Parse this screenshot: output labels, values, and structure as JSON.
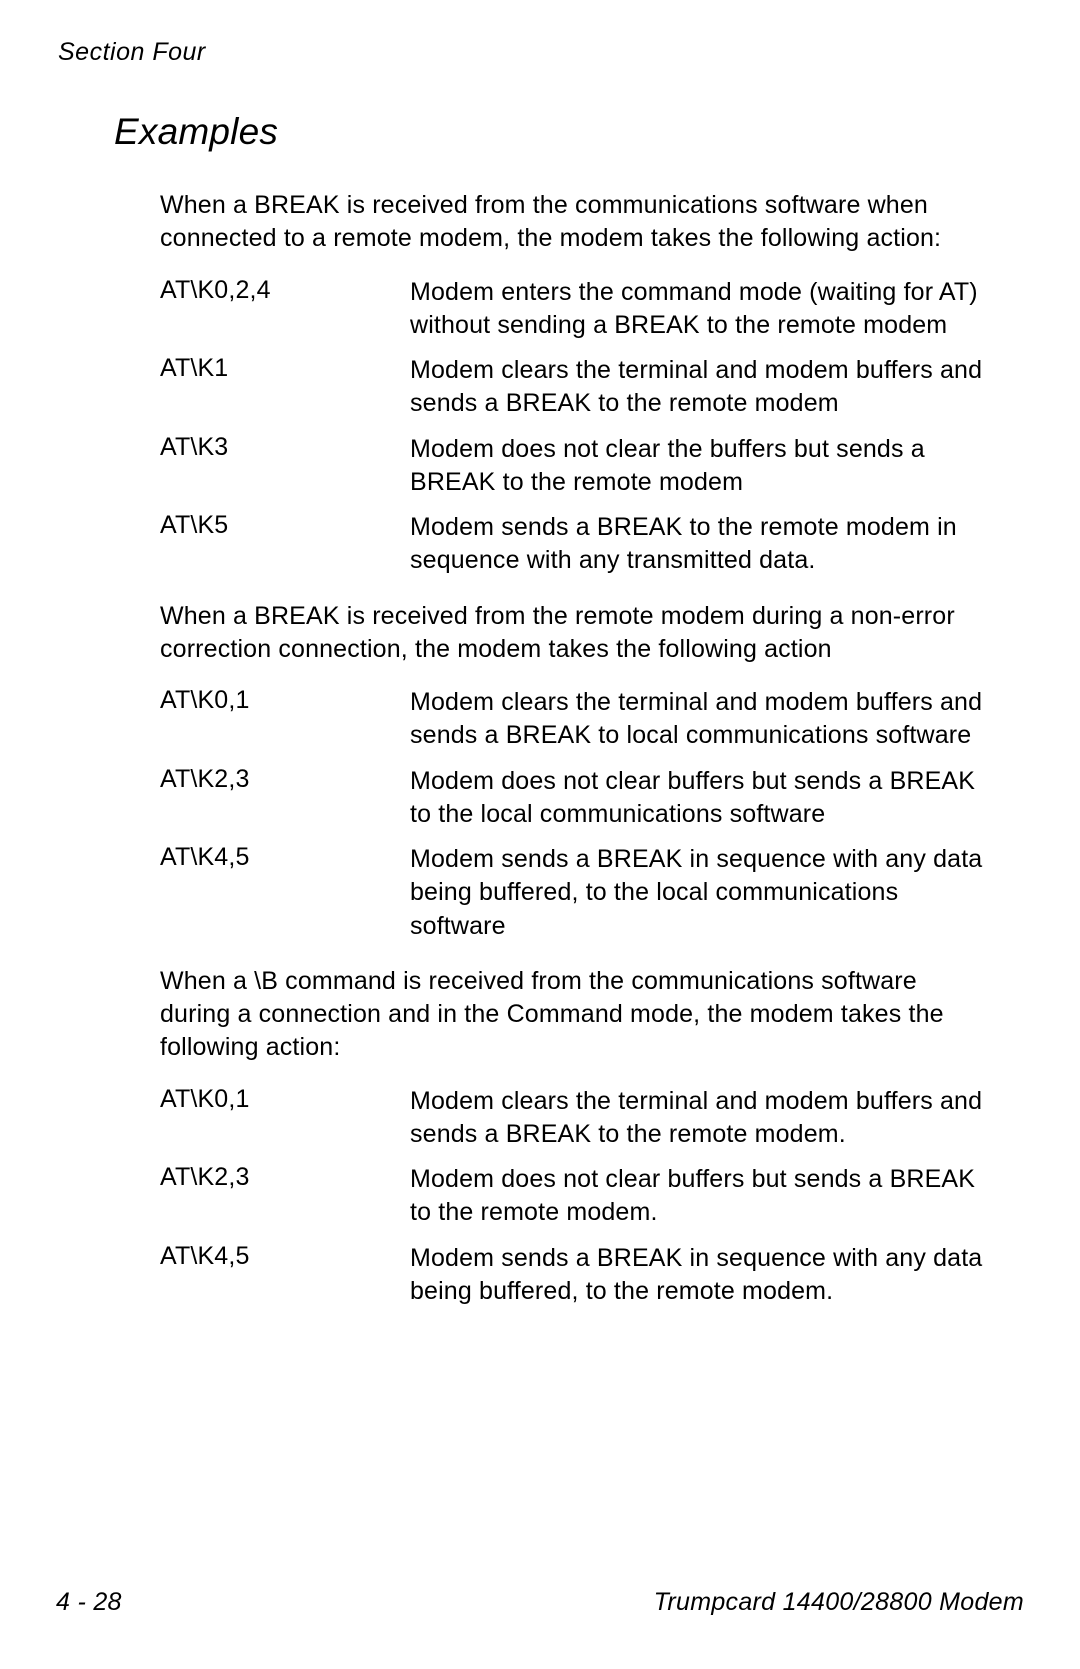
{
  "header": {
    "section": "Section  Four"
  },
  "title": "Examples",
  "content": {
    "para1": "When a BREAK is received from the communications software when connected to a remote modem, the modem takes the following action:",
    "list1": [
      {
        "term": "AT\\K0,2,4",
        "desc": "Modem enters the command mode (waiting for AT) without sending a BREAK to the remote modem"
      },
      {
        "term": "AT\\K1",
        "desc": "Modem clears the terminal and modem buffers and sends a BREAK to the remote modem"
      },
      {
        "term": "AT\\K3",
        "desc": "Modem does not clear the buffers but sends a BREAK to the remote modem"
      },
      {
        "term": "AT\\K5",
        "desc": "Modem sends a BREAK to the remote modem in sequence with any transmitted data."
      }
    ],
    "para2": "When a BREAK is received from the remote modem during a non-error correction connection, the modem takes the following action",
    "list2": [
      {
        "term": "AT\\K0,1",
        "desc": "Modem clears the terminal and modem buffers and sends a BREAK to local communications software"
      },
      {
        "term": "AT\\K2,3",
        "desc": "Modem does not clear buffers but sends a BREAK to the local communications software"
      },
      {
        "term": "AT\\K4,5",
        "desc": "Modem sends a BREAK in sequence with any data being buffered, to the local communications software"
      }
    ],
    "para3": "When a \\B command is received from the communications software during a connection and in the Command mode, the modem takes the following action:",
    "list3": [
      {
        "term": "AT\\K0,1",
        "desc": "Modem clears the terminal and modem buffers and sends a BREAK to the remote modem."
      },
      {
        "term": "AT\\K2,3",
        "desc": "Modem does not clear buffers but sends a BREAK to the remote modem."
      },
      {
        "term": "AT\\K4,5",
        "desc": "Modem sends a BREAK in sequence with any data being buffered, to the remote modem."
      }
    ]
  },
  "footer": {
    "page": "4 - 28",
    "doc": "Trumpcard 14400/28800 Modem"
  }
}
